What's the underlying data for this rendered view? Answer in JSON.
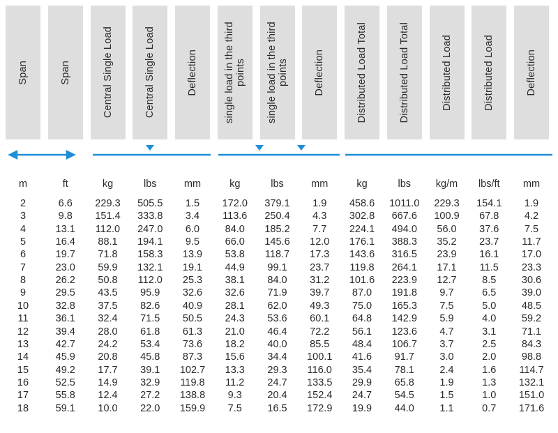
{
  "header": {
    "columns": [
      "Span",
      "Span",
      "Central Single Load",
      "Central Single Load",
      "Deflection",
      "single load in the third points",
      "single load in the third points",
      "Deflection",
      "Distributed Load Total",
      "Distributed Load Total",
      "Distributed Load",
      "Distributed Load",
      "Deflection"
    ]
  },
  "units": [
    "m",
    "ft",
    "kg",
    "lbs",
    "mm",
    "kg",
    "lbs",
    "mm",
    "kg",
    "lbs",
    "kg/m",
    "lbs/ft",
    "mm"
  ],
  "rows": [
    [
      "2",
      "6.6",
      "229.3",
      "505.5",
      "1.5",
      "172.0",
      "379.1",
      "1.9",
      "458.6",
      "1011.0",
      "229.3",
      "154.1",
      "1.9"
    ],
    [
      "3",
      "9.8",
      "151.4",
      "333.8",
      "3.4",
      "113.6",
      "250.4",
      "4.3",
      "302.8",
      "667.6",
      "100.9",
      "67.8",
      "4.2"
    ],
    [
      "4",
      "13.1",
      "112.0",
      "247.0",
      "6.0",
      "84.0",
      "185.2",
      "7.7",
      "224.1",
      "494.0",
      "56.0",
      "37.6",
      "7.5"
    ],
    [
      "5",
      "16.4",
      "88.1",
      "194.1",
      "9.5",
      "66.0",
      "145.6",
      "12.0",
      "176.1",
      "388.3",
      "35.2",
      "23.7",
      "11.7"
    ],
    [
      "6",
      "19.7",
      "71.8",
      "158.3",
      "13.9",
      "53.8",
      "118.7",
      "17.3",
      "143.6",
      "316.5",
      "23.9",
      "16.1",
      "17.0"
    ],
    [
      "7",
      "23.0",
      "59.9",
      "132.1",
      "19.1",
      "44.9",
      "99.1",
      "23.7",
      "119.8",
      "264.1",
      "17.1",
      "11.5",
      "23.3"
    ],
    [
      "8",
      "26.2",
      "50.8",
      "112.0",
      "25.3",
      "38.1",
      "84.0",
      "31.2",
      "101.6",
      "223.9",
      "12.7",
      "8.5",
      "30.6"
    ],
    [
      "9",
      "29.5",
      "43.5",
      "95.9",
      "32.6",
      "32.6",
      "71.9",
      "39.7",
      "87.0",
      "191.8",
      "9.7",
      "6.5",
      "39.0"
    ],
    [
      "10",
      "32.8",
      "37.5",
      "82.6",
      "40.9",
      "28.1",
      "62.0",
      "49.3",
      "75.0",
      "165.3",
      "7.5",
      "5.0",
      "48.5"
    ],
    [
      "11",
      "36.1",
      "32.4",
      "71.5",
      "50.5",
      "24.3",
      "53.6",
      "60.1",
      "64.8",
      "142.9",
      "5.9",
      "4.0",
      "59.2"
    ],
    [
      "12",
      "39.4",
      "28.0",
      "61.8",
      "61.3",
      "21.0",
      "46.4",
      "72.2",
      "56.1",
      "123.6",
      "4.7",
      "3.1",
      "71.1"
    ],
    [
      "13",
      "42.7",
      "24.2",
      "53.4",
      "73.6",
      "18.2",
      "40.0",
      "85.5",
      "48.4",
      "106.7",
      "3.7",
      "2.5",
      "84.3"
    ],
    [
      "14",
      "45.9",
      "20.8",
      "45.8",
      "87.3",
      "15.6",
      "34.4",
      "100.1",
      "41.6",
      "91.7",
      "3.0",
      "2.0",
      "98.8"
    ],
    [
      "15",
      "49.2",
      "17.7",
      "39.1",
      "102.7",
      "13.3",
      "29.3",
      "116.0",
      "35.4",
      "78.1",
      "2.4",
      "1.6",
      "114.7"
    ],
    [
      "16",
      "52.5",
      "14.9",
      "32.9",
      "119.8",
      "11.2",
      "24.7",
      "133.5",
      "29.9",
      "65.8",
      "1.9",
      "1.3",
      "132.1"
    ],
    [
      "17",
      "55.8",
      "12.4",
      "27.2",
      "138.8",
      "9.3",
      "20.4",
      "152.4",
      "24.7",
      "54.5",
      "1.5",
      "1.0",
      "151.0"
    ],
    [
      "18",
      "59.1",
      "10.0",
      "22.0",
      "159.9",
      "7.5",
      "16.5",
      "172.9",
      "19.9",
      "44.0",
      "1.1",
      "0.7",
      "171.6"
    ]
  ]
}
